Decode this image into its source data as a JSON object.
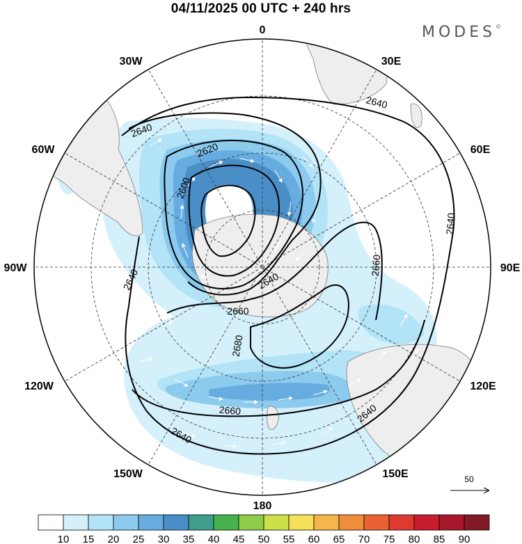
{
  "title": "04/11/2025  00 UTC  + 240 hrs",
  "brand": "MODES",
  "brand_mark": "©",
  "lon_labels": [
    "0",
    "30E",
    "60E",
    "90E",
    "120E",
    "150E",
    "180",
    "150W",
    "120W",
    "90W",
    "60W",
    "30W"
  ],
  "contour_labels": [
    "2640",
    "2640",
    "2620",
    "2600",
    "2640",
    "2640",
    "2640",
    "2660",
    "2660",
    "2680",
    "2660",
    "2640",
    "2640"
  ],
  "vector_reference": {
    "label": "50",
    "value": 50
  },
  "colorbar": {
    "labels": [
      "10",
      "15",
      "20",
      "25",
      "30",
      "35",
      "40",
      "45",
      "50",
      "55",
      "60",
      "65",
      "70",
      "75",
      "80",
      "85",
      "90"
    ],
    "colors": [
      "#ffffff",
      "#d4f0fb",
      "#b3e3f7",
      "#8ccaee",
      "#67ace0",
      "#4a8ec8",
      "#3f9e8c",
      "#47b24e",
      "#8fcc4a",
      "#cde04a",
      "#f6e05a",
      "#f5b74c",
      "#f18e3c",
      "#ea6233",
      "#df3a30",
      "#c91d2e",
      "#a8172a",
      "#821a24"
    ]
  },
  "colors": {
    "land": "#eeeeee",
    "coast": "#7a7a7a",
    "contour": "#000000",
    "grid": "#333333"
  }
}
